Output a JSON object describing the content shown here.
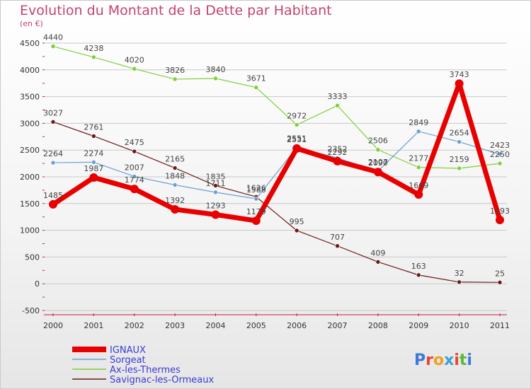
{
  "title": "Evolution du Montant de la Dette par Habitant",
  "unit": "(en €)",
  "logo": "Proxiti",
  "colors": {
    "title": "#c4446a",
    "grid": "#c8c8c8",
    "legend_text": "#3a3ad8"
  },
  "chart_data": {
    "type": "line",
    "title": "Evolution du Montant de la Dette par Habitant",
    "ylabel": "(en €)",
    "xlabel": "",
    "ylim": [
      -500,
      4500
    ],
    "yticks": [
      -500,
      0,
      500,
      1000,
      1500,
      2000,
      2500,
      3000,
      3500,
      4000,
      4500
    ],
    "grid": true,
    "legend_position": "bottom-left",
    "x": [
      "2000",
      "2001",
      "2002",
      "2003",
      "2004",
      "2005",
      "2006",
      "2007",
      "2008",
      "2009",
      "2010",
      "2011"
    ],
    "series": [
      {
        "name": "IGNAUX",
        "color": "#e80000",
        "line_width": 7,
        "marker_radius": 6,
        "values": [
          1485,
          1987,
          1774,
          1392,
          1293,
          1179,
          2531,
          2292,
          2090,
          1669,
          3743,
          1193
        ]
      },
      {
        "name": "Sorgeat",
        "color": "#6a9fd0",
        "line_width": 1.2,
        "marker_radius": 3,
        "values": [
          2264,
          2274,
          2007,
          1848,
          1711,
          1588,
          2551,
          2352,
          2107,
          2849,
          2654,
          2423
        ]
      },
      {
        "name": "Ax-les-Thermes",
        "color": "#7fce3a",
        "line_width": 1.2,
        "marker_radius": 3,
        "values": [
          4440,
          4238,
          4020,
          3826,
          3840,
          3671,
          2972,
          3333,
          2506,
          2177,
          2159,
          2250
        ]
      },
      {
        "name": "Savignac-les-Ormeaux",
        "color": "#6b1a1a",
        "line_width": 1.2,
        "marker_radius": 3,
        "values": [
          3027,
          2761,
          2475,
          2165,
          1835,
          1626,
          995,
          707,
          409,
          163,
          32,
          25
        ]
      }
    ]
  }
}
